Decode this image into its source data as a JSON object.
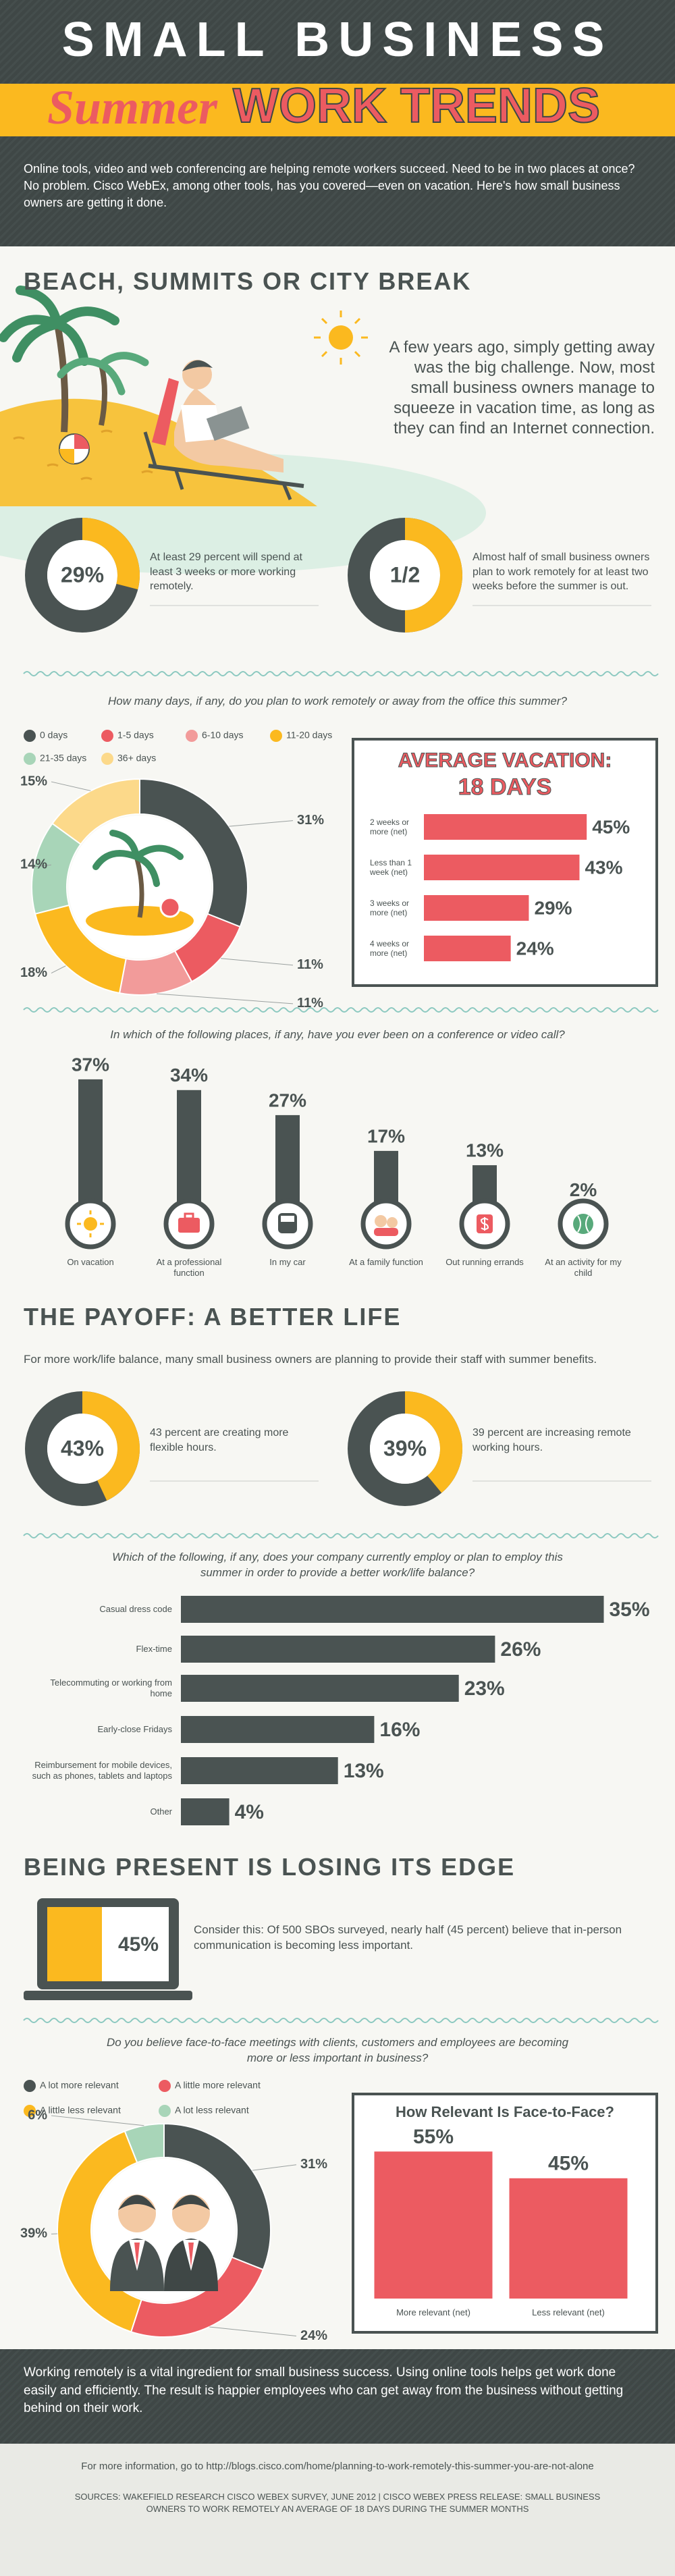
{
  "header": {
    "title": "SMALL BUSINESS",
    "subtitle_script": "Summer",
    "subtitle": "WORK TRENDS",
    "intro": "Online tools, video and web conferencing are helping remote workers succeed. Need to be in two places at once? No problem. Cisco WebEx, among other tools, has you covered—even on vacation. Here's how small business owners are getting it done."
  },
  "sections": [
    {
      "title": "BEACH, SUMMITS OR CITY BREAK",
      "text": "A few years ago, simply getting away was the big challenge. Now, most small business owners manage to squeeze in vacation time, as long as they can find an Internet connection."
    },
    {
      "title": "THE PAYOFF: A BETTER LIFE",
      "text": "For more work/life balance, many small business owners are planning to provide their staff with summer benefits."
    },
    {
      "title": "BEING PRESENT IS LOSING ITS EDGE",
      "text": "Consider this: Of 500 SBOs surveyed, nearly half (45 percent) believe that in-person communication is becoming less important."
    }
  ],
  "chart_data": [
    {
      "type": "donut",
      "values": [
        29
      ],
      "value_labels": [
        "29%"
      ],
      "color": "#fbb91f",
      "text": "At least 29 percent will spend at least 3 weeks or more working remotely."
    },
    {
      "type": "donut",
      "values": [
        50
      ],
      "value_labels": [
        "1/2"
      ],
      "color": "#fbb91f",
      "text": "Almost half of small business owners plan to work remotely for at least two weeks before the summer is out."
    },
    {
      "type": "pie",
      "title": "How many days, if any, do you plan to work remotely or away from the office this summer?",
      "categories": [
        "0 days",
        "1-5 days",
        "6-10 days",
        "11-20 days",
        "21-35 days",
        "36+ days"
      ],
      "values": [
        31,
        11,
        11,
        18,
        14,
        15
      ],
      "value_labels": [
        "31%",
        "11%",
        "11%",
        "18%",
        "14%",
        "15%"
      ],
      "colors": [
        "#4a5352",
        "#ec5b61",
        "#f29b9a",
        "#fbb91f",
        "#a8d5b8",
        "#fcd98a"
      ]
    },
    {
      "type": "hbar",
      "title": "AVERAGE VACATION:",
      "subtitle": "18 DAYS",
      "categories": [
        "2 weeks or more (net)",
        "Less than 1 week (net)",
        "3 weeks or more (net)",
        "4 weeks or more (net)"
      ],
      "values": [
        45,
        43,
        29,
        24
      ],
      "value_labels": [
        "45%",
        "43%",
        "29%",
        "24%"
      ],
      "color": "#ec5b61"
    },
    {
      "type": "column",
      "title": "In which of the following places, if any, have you ever been on a conference or video call?",
      "categories": [
        "On vacation",
        "At a professional function",
        "In my car",
        "At a family function",
        "Out running errands",
        "At an activity for my child"
      ],
      "values": [
        37,
        34,
        27,
        17,
        13,
        2
      ],
      "value_labels": [
        "37%",
        "34%",
        "27%",
        "17%",
        "13%",
        "2%"
      ],
      "color": "#4a5352"
    },
    {
      "type": "donut",
      "values": [
        43
      ],
      "value_labels": [
        "43%"
      ],
      "color": "#fbb91f",
      "text": "43 percent are creating more flexible hours."
    },
    {
      "type": "donut",
      "values": [
        39
      ],
      "value_labels": [
        "39%"
      ],
      "color": "#fbb91f",
      "text": "39 percent are increasing remote working hours."
    },
    {
      "type": "hbar",
      "title": "Which of the following, if any, does your company currently employ or plan to employ this summer in order to provide a better work/life balance?",
      "categories": [
        "Casual dress code",
        "Flex-time",
        "Telecommuting or working from home",
        "Early-close Fridays",
        "Reimbursement for mobile devices, such as phones, tablets and laptops",
        "Other"
      ],
      "values": [
        35,
        26,
        23,
        16,
        13,
        4
      ],
      "value_labels": [
        "35%",
        "26%",
        "23%",
        "16%",
        "13%",
        "4%"
      ],
      "color": "#4a5352"
    },
    {
      "type": "laptop",
      "values": [
        45
      ],
      "value_labels": [
        "45%"
      ],
      "color": "#fbb91f"
    },
    {
      "type": "pie",
      "title": "Do you believe face-to-face meetings with clients, customers and employees are becoming more or less important in business?",
      "categories": [
        "A lot more relevant",
        "A little more relevant",
        "A little less relevant",
        "A lot less relevant"
      ],
      "values": [
        31,
        24,
        39,
        6
      ],
      "value_labels": [
        "31%",
        "24%",
        "39%",
        "6%"
      ],
      "colors": [
        "#4a5352",
        "#ec5b61",
        "#fbb91f",
        "#a8d5b8"
      ]
    },
    {
      "type": "column",
      "title": "How Relevant Is Face-to-Face?",
      "categories": [
        "More relevant (net)",
        "Less relevant (net)"
      ],
      "values": [
        55,
        45
      ],
      "value_labels": [
        "55%",
        "45%"
      ],
      "color": "#ec5b61"
    }
  ],
  "footer": {
    "text": "Working remotely is a vital ingredient for small business success. Using online tools helps get work done easily and efficiently. The result is happier employees who can get away from the business without getting behind on their work.",
    "more_info": "For more information, go to http://blogs.cisco.com/home/planning-to-work-remotely-this-summer-you-are-not-alone",
    "sources": "SOURCES: WAKEFIELD RESEARCH CISCO WEBEX SURVEY, JUNE 2012 | CISCO WEBEX PRESS RELEASE: SMALL BUSINESS OWNERS TO WORK REMOTELY AN AVERAGE OF 18 DAYS DURING THE SUMMER MONTHS"
  }
}
